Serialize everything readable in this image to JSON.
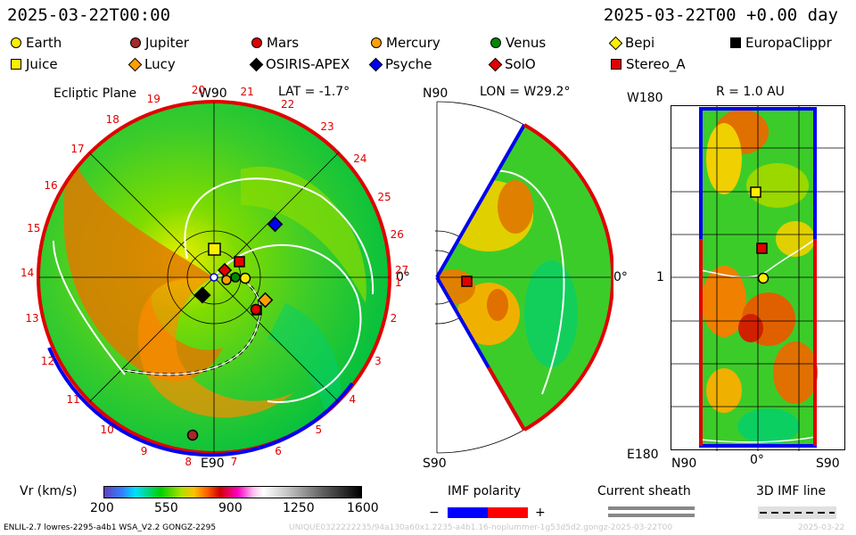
{
  "header": {
    "datetime": "2025-03-22T00:00",
    "datetime_offset": "2025-03-22T00 +0.00 day"
  },
  "legend": [
    {
      "name": "Earth",
      "shape": "circle",
      "color": "#ffee00"
    },
    {
      "name": "Jupiter",
      "shape": "circle",
      "color": "#a52a2a"
    },
    {
      "name": "Mars",
      "shape": "circle",
      "color": "#e00000"
    },
    {
      "name": "Mercury",
      "shape": "circle",
      "color": "#ffa000"
    },
    {
      "name": "Venus",
      "shape": "circle",
      "color": "#008800"
    },
    {
      "name": "Bepi",
      "shape": "diamond",
      "color": "#ffee00"
    },
    {
      "name": "EuropaClippr",
      "shape": "square",
      "color": "#000000"
    },
    {
      "name": "Juice",
      "shape": "square",
      "color": "#ffee00"
    },
    {
      "name": "Lucy",
      "shape": "diamond",
      "color": "#ffa000"
    },
    {
      "name": "OSIRIS-APEX",
      "shape": "diamond",
      "color": "#000000"
    },
    {
      "name": "Psyche",
      "shape": "diamond",
      "color": "#0000ee"
    },
    {
      "name": "SolO",
      "shape": "diamond",
      "color": "#e00000"
    },
    {
      "name": "Stereo_A",
      "shape": "square",
      "color": "#e00000"
    }
  ],
  "ecliptic": {
    "title": "Ecliptic Plane",
    "top_label": "W90",
    "lat_label": "LAT = -1.7°",
    "bottom_label": "E90",
    "right_label": "0°",
    "ticks": [
      "20",
      "21",
      "22",
      "23",
      "24",
      "25",
      "26",
      "27",
      "19",
      "18",
      "17",
      "16",
      "15",
      "14",
      "13",
      "12",
      "11",
      "10",
      "9",
      "8",
      "7",
      "6",
      "5",
      "4",
      "3",
      "2",
      "1"
    ]
  },
  "meridional": {
    "top_left": "N90",
    "lon_label": "LON = W29.2°",
    "right_label": "0°",
    "bottom_left": "S90"
  },
  "latlon": {
    "top_left": "W180",
    "r_label": "R = 1.0 AU",
    "mid_left": "1",
    "bottom_left": "E180",
    "x_left": "N90",
    "x_mid": "0°",
    "x_right": "S90"
  },
  "colorbar": {
    "label": "Vr (km/s)",
    "ticks": [
      "200",
      "550",
      "900",
      "1250",
      "1600"
    ]
  },
  "imf": {
    "polarity_label": "IMF polarity",
    "minus": "−",
    "plus": "+",
    "sheath_label": "Current sheath",
    "line_label": "3D IMF line"
  },
  "footer": {
    "model": "ENLIL-2.7 lowres-2295-a4b1 WSA_V2.2 GONGZ-2295",
    "run": "UNIQUE0322222235/94a130a60x1.2235-a4b1.16-noplummer-1g53d5d2.gongz-2025-03-22T00",
    "date": "2025-03-22"
  },
  "colors": {
    "positive": "#ff0000",
    "negative": "#0000ff"
  }
}
